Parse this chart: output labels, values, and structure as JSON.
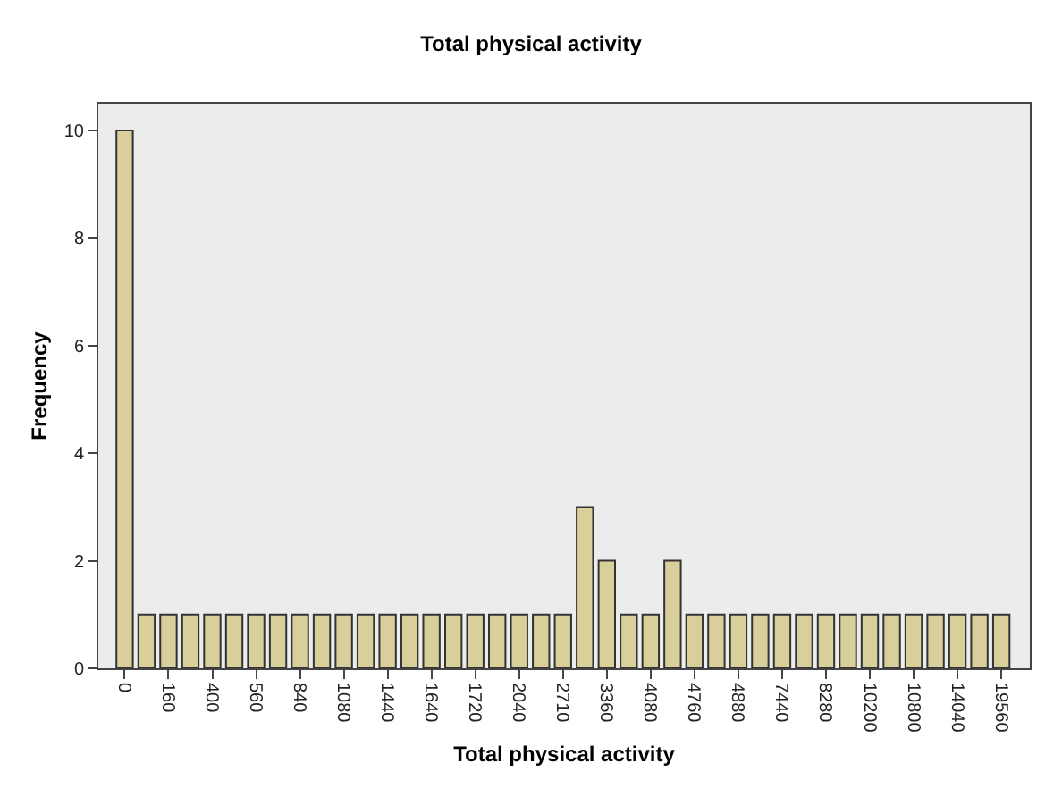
{
  "chart_data": {
    "type": "bar",
    "title": "Total physical activity",
    "xlabel": "Total physical activity",
    "ylabel": "Frequency",
    "categories": [
      "0",
      null,
      "160",
      null,
      "400",
      null,
      "560",
      null,
      "840",
      null,
      "1080",
      null,
      "1440",
      null,
      "1640",
      null,
      "1720",
      null,
      "2040",
      null,
      "2710",
      null,
      "3360",
      null,
      "4080",
      null,
      "4760",
      null,
      "4880",
      null,
      "7440",
      null,
      "8280",
      null,
      "10200",
      null,
      "10800",
      null,
      "14040",
      null,
      "19560"
    ],
    "values": [
      10,
      1,
      1,
      1,
      1,
      1,
      1,
      1,
      1,
      1,
      1,
      1,
      1,
      1,
      1,
      1,
      1,
      1,
      1,
      1,
      1,
      3,
      2,
      1,
      1,
      2,
      1,
      1,
      1,
      1,
      1,
      1,
      1,
      1,
      1,
      1,
      1,
      1,
      1,
      1,
      1
    ],
    "color": "#d8cf9a",
    "ylim": [
      0,
      10.5
    ],
    "yticks": [
      0,
      2,
      4,
      6,
      8,
      10
    ],
    "grid": false
  }
}
